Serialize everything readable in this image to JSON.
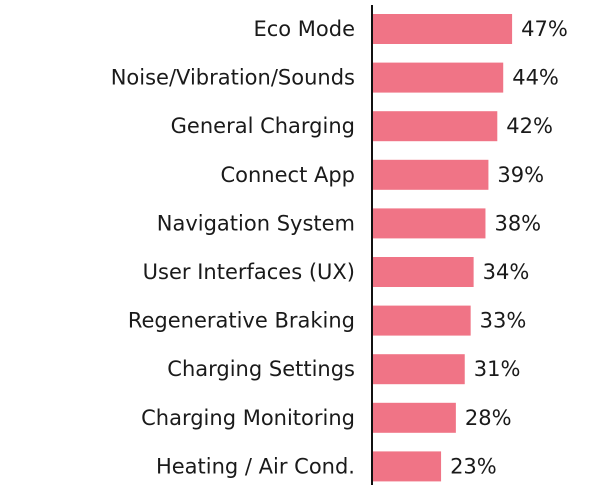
{
  "chart_data": {
    "type": "barh",
    "categories": [
      "Eco Mode",
      "Noise/Vibration/Sounds",
      "General Charging",
      "Connect App",
      "Navigation System",
      "User Interfaces (UX)",
      "Regenerative Braking",
      "Charging Settings",
      "Charging Monitoring",
      "Heating / Air Cond."
    ],
    "values": [
      47,
      44,
      42,
      39,
      38,
      34,
      33,
      31,
      28,
      23
    ],
    "value_labels": [
      "47%",
      "44%",
      "42%",
      "39%",
      "38%",
      "34%",
      "33%",
      "31%",
      "28%",
      "23%"
    ],
    "color": "#f07486",
    "xlim": [
      0,
      74
    ]
  }
}
